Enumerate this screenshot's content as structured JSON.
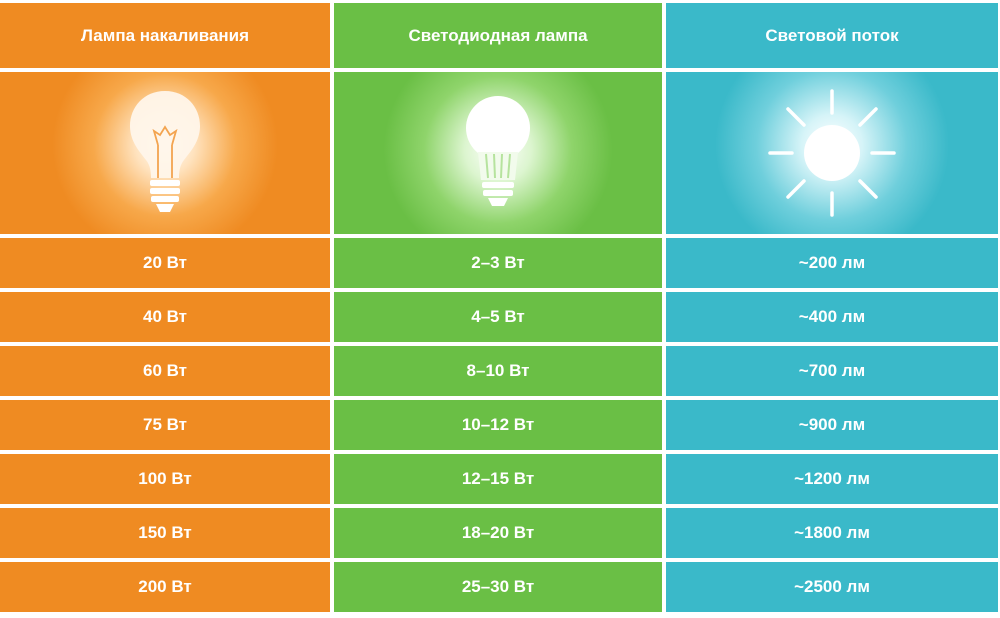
{
  "headers": {
    "incandescent": "Лампа накаливания",
    "led": "Светодиодная лампа",
    "flux": "Световой поток"
  },
  "rows": [
    {
      "incandescent": "20 Вт",
      "led": "2–3 Вт",
      "flux": "~200 лм"
    },
    {
      "incandescent": "40 Вт",
      "led": "4–5 Вт",
      "flux": "~400 лм"
    },
    {
      "incandescent": "60 Вт",
      "led": "8–10 Вт",
      "flux": "~700 лм"
    },
    {
      "incandescent": "75 Вт",
      "led": "10–12 Вт",
      "flux": "~900 лм"
    },
    {
      "incandescent": "100 Вт",
      "led": "12–15 Вт",
      "flux": "~1200 лм"
    },
    {
      "incandescent": "150 Вт",
      "led": "18–20 Вт",
      "flux": "~1800 лм"
    },
    {
      "incandescent": "200 Вт",
      "led": "25–30 Вт",
      "flux": "~2500 лм"
    }
  ],
  "icons": {
    "incandescent": "incandescent-bulb-icon",
    "led": "led-bulb-icon",
    "flux": "sun-icon"
  },
  "colors": {
    "orange": "#ef8b22",
    "green": "#6abf45",
    "blue": "#3ab9c9"
  }
}
